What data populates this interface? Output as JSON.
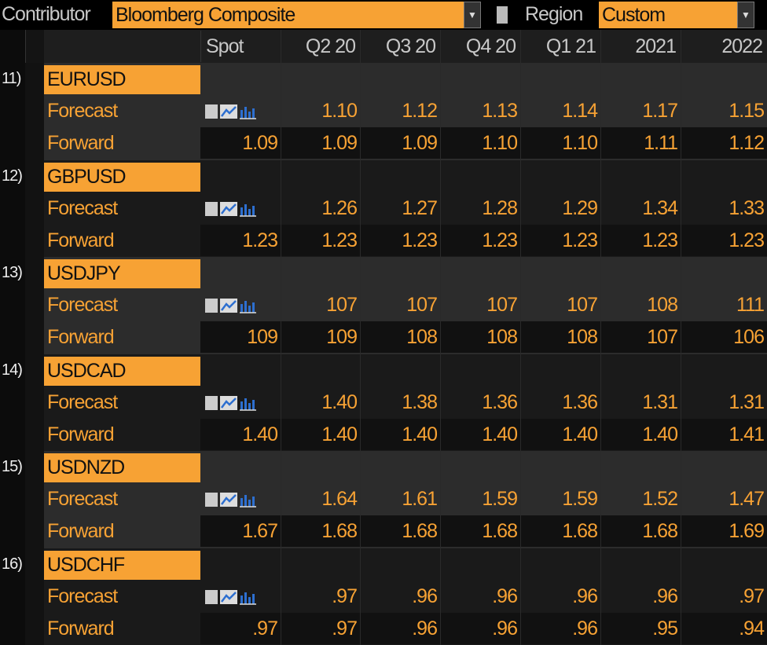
{
  "toolbar": {
    "contributor_label": "Contributor",
    "contributor_value": "Bloomberg Composite",
    "region_label": "Region",
    "region_value": "Custom"
  },
  "table": {
    "columns": [
      "Spot",
      "Q2 20",
      "Q3 20",
      "Q4 20",
      "Q1 21",
      "2021",
      "2022"
    ],
    "groups": [
      {
        "index": "11)",
        "pair": "EURUSD",
        "forecast_label": "Forecast",
        "forecast": [
          "1.10",
          "1.12",
          "1.13",
          "1.14",
          "1.17",
          "1.15"
        ],
        "forward_label": "Forward",
        "forward": [
          "1.09",
          "1.09",
          "1.09",
          "1.10",
          "1.10",
          "1.11",
          "1.12"
        ]
      },
      {
        "index": "12)",
        "pair": "GBPUSD",
        "forecast_label": "Forecast",
        "forecast": [
          "1.26",
          "1.27",
          "1.28",
          "1.29",
          "1.34",
          "1.33"
        ],
        "forward_label": "Forward",
        "forward": [
          "1.23",
          "1.23",
          "1.23",
          "1.23",
          "1.23",
          "1.23",
          "1.23"
        ]
      },
      {
        "index": "13)",
        "pair": "USDJPY",
        "forecast_label": "Forecast",
        "forecast": [
          "107",
          "107",
          "107",
          "107",
          "108",
          "111"
        ],
        "forward_label": "Forward",
        "forward": [
          "109",
          "109",
          "108",
          "108",
          "108",
          "107",
          "106"
        ]
      },
      {
        "index": "14)",
        "pair": "USDCAD",
        "forecast_label": "Forecast",
        "forecast": [
          "1.40",
          "1.38",
          "1.36",
          "1.36",
          "1.31",
          "1.31"
        ],
        "forward_label": "Forward",
        "forward": [
          "1.40",
          "1.40",
          "1.40",
          "1.40",
          "1.40",
          "1.40",
          "1.41"
        ]
      },
      {
        "index": "15)",
        "pair": "USDNZD",
        "forecast_label": "Forecast",
        "forecast": [
          "1.64",
          "1.61",
          "1.59",
          "1.59",
          "1.52",
          "1.47"
        ],
        "forward_label": "Forward",
        "forward": [
          "1.67",
          "1.68",
          "1.68",
          "1.68",
          "1.68",
          "1.68",
          "1.69"
        ]
      },
      {
        "index": "16)",
        "pair": "USDCHF",
        "forecast_label": "Forecast",
        "forecast": [
          ".97",
          ".96",
          ".96",
          ".96",
          ".96",
          ".97"
        ],
        "forward_label": "Forward",
        "forward": [
          ".97",
          ".97",
          ".96",
          ".96",
          ".96",
          ".95",
          ".94"
        ]
      }
    ]
  }
}
